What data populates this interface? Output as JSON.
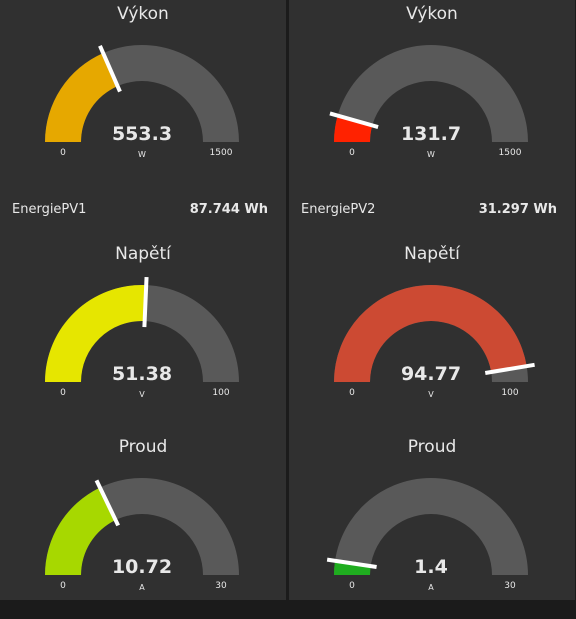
{
  "left": {
    "gauges": [
      {
        "title": "Výkon",
        "value": 553.3,
        "display": "553.3",
        "unit": "W",
        "min": 0,
        "min_label": "0",
        "max": 1500,
        "max_label": "1500",
        "color": "#e6a800"
      },
      {
        "title": "Napětí",
        "value": 51.38,
        "display": "51.38",
        "unit": "V",
        "min": 0,
        "min_label": "0",
        "max": 100,
        "max_label": "100",
        "color": "#e6e600"
      },
      {
        "title": "Proud",
        "value": 10.72,
        "display": "10.72",
        "unit": "A",
        "min": 0,
        "min_label": "0",
        "max": 30,
        "max_label": "30",
        "color": "#a7d800"
      }
    ],
    "text": {
      "label": "EnergiePV1",
      "value": "87.744 Wh"
    }
  },
  "right": {
    "gauges": [
      {
        "title": "Výkon",
        "value": 131.7,
        "display": "131.7",
        "unit": "W",
        "min": 0,
        "min_label": "0",
        "max": 1500,
        "max_label": "1500",
        "color": "#ff2200"
      },
      {
        "title": "Napětí",
        "value": 94.77,
        "display": "94.77",
        "unit": "V",
        "min": 0,
        "min_label": "0",
        "max": 100,
        "max_label": "100",
        "color": "#cc4a33"
      },
      {
        "title": "Proud",
        "value": 1.4,
        "display": "1.4",
        "unit": "A",
        "min": 0,
        "min_label": "0",
        "max": 30,
        "max_label": "30",
        "color": "#1fad1f"
      }
    ],
    "text": {
      "label": "EnergiePV2",
      "value": "31.297 Wh"
    }
  },
  "colors": {
    "background": "#303030",
    "track": "#595959",
    "needle": "#ffffff",
    "text": "#e8e8e8"
  }
}
